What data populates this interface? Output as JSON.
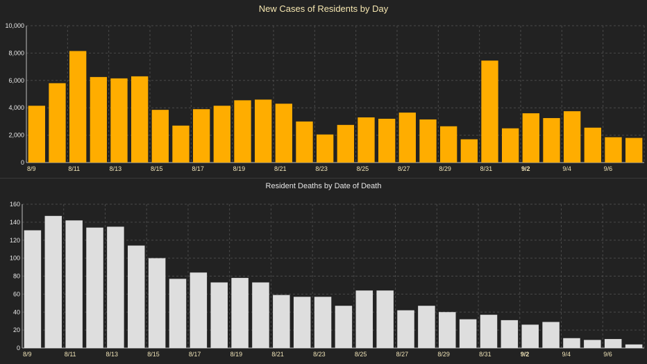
{
  "chart_data": [
    {
      "type": "bar",
      "title": "New Cases of Residents by Day",
      "categories": [
        "8/9",
        "8/10",
        "8/11",
        "8/12",
        "8/13",
        "8/14",
        "8/15",
        "8/16",
        "8/17",
        "8/18",
        "8/19",
        "8/20",
        "8/21",
        "8/22",
        "8/23",
        "8/24",
        "8/25",
        "8/26",
        "8/27",
        "8/28",
        "8/29",
        "8/30",
        "8/31",
        "9/1",
        "9/2",
        "9/3",
        "9/4",
        "9/5",
        "9/6",
        "9/7"
      ],
      "xtick_labels": [
        "8/9",
        "8/11",
        "8/13",
        "8/15",
        "8/17",
        "8/19",
        "8/21",
        "8/23",
        "8/25",
        "8/27",
        "8/29",
        "8/31",
        "9/2",
        "9/4",
        "9/6"
      ],
      "values": [
        4150,
        5800,
        8150,
        6250,
        6150,
        6300,
        3850,
        2700,
        3900,
        4150,
        4550,
        4600,
        4300,
        3000,
        2050,
        2750,
        3300,
        3200,
        3650,
        3150,
        2650,
        1700,
        7450,
        2500,
        3600,
        3250,
        3750,
        2550,
        1850,
        1800
      ],
      "yticks": [
        "0",
        "2,000",
        "4,000",
        "6,000",
        "8,000",
        "10,000"
      ],
      "ylim": [
        0,
        10000
      ],
      "color": "#ffad00",
      "grid": true
    },
    {
      "type": "bar",
      "title": "Resident Deaths by Date of Death",
      "categories": [
        "8/9",
        "8/10",
        "8/11",
        "8/12",
        "8/13",
        "8/14",
        "8/15",
        "8/16",
        "8/17",
        "8/18",
        "8/19",
        "8/20",
        "8/21",
        "8/22",
        "8/23",
        "8/24",
        "8/25",
        "8/26",
        "8/27",
        "8/28",
        "8/29",
        "8/30",
        "8/31",
        "9/1",
        "9/2",
        "9/3",
        "9/4",
        "9/5",
        "9/6",
        "9/7"
      ],
      "xtick_labels": [
        "8/9",
        "8/11",
        "8/13",
        "8/15",
        "8/17",
        "8/19",
        "8/21",
        "8/23",
        "8/25",
        "8/27",
        "8/29",
        "8/31",
        "9/2",
        "9/4",
        "9/6"
      ],
      "values": [
        131,
        147,
        142,
        134,
        135,
        114,
        100,
        77,
        84,
        73,
        78,
        73,
        59,
        57,
        57,
        47,
        64,
        64,
        42,
        47,
        40,
        32,
        37,
        31,
        26,
        29,
        11,
        9,
        10,
        4
      ],
      "yticks": [
        "0",
        "20",
        "40",
        "60",
        "80",
        "100",
        "120",
        "140",
        "160"
      ],
      "ylim": [
        0,
        160
      ],
      "color": "#dedede",
      "grid": true
    }
  ],
  "colors": {
    "background": "#222222",
    "cases_bar": "#ffad00",
    "deaths_bar": "#dedede"
  }
}
